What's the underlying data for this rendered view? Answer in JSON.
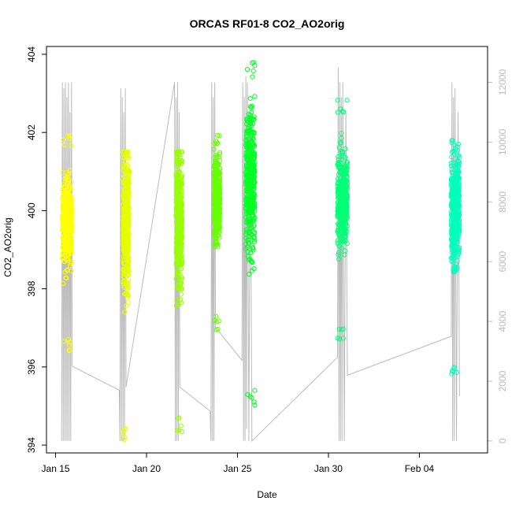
{
  "chart_data": {
    "type": "scatter",
    "title": "ORCAS RF01-8 CO2_AO2orig",
    "xlabel": "Date",
    "ylabel": "CO2_AO2orig",
    "x_axis": {
      "type": "date",
      "range": [
        "2016-01-14T12:00",
        "2016-02-07T18:00"
      ],
      "ticks": [
        {
          "value": "2016-01-15",
          "label": "Jan 15"
        },
        {
          "value": "2016-01-20",
          "label": "Jan 20"
        },
        {
          "value": "2016-01-25",
          "label": "Jan 25"
        },
        {
          "value": "2016-01-30",
          "label": "Jan 30"
        },
        {
          "value": "2016-02-04",
          "label": "Feb 04"
        }
      ]
    },
    "y_axis": {
      "range": [
        393.8,
        404.2
      ],
      "ticks": [
        394,
        396,
        398,
        400,
        402,
        404
      ]
    },
    "y2_axis": {
      "range": [
        -400,
        13200
      ],
      "ticks": [
        0,
        2000,
        4000,
        6000,
        8000,
        10000,
        12000
      ],
      "color": "#bbbbbb"
    },
    "colors": {
      "altitude_line": "#bbbbbb",
      "axis": "#000000",
      "right_axis": "#bbbbbb"
    },
    "series": [
      {
        "start": "2016-01-15T09:00",
        "end": "2016-01-15T22:00",
        "co2_min": 396.3,
        "co2_max": 402.0,
        "co2_center": 399.7,
        "color": "#ffff00"
      },
      {
        "start": "2016-01-18T17:00",
        "end": "2016-01-19T01:00",
        "co2_min": 394.1,
        "co2_max": 401.5,
        "co2_center": 399.6,
        "color": "#e6ff00"
      },
      {
        "start": "2016-01-21T15:00",
        "end": "2016-01-21T23:00",
        "co2_min": 394.3,
        "co2_max": 401.5,
        "co2_center": 399.8,
        "color": "#99ff00"
      },
      {
        "start": "2016-01-23T17:00",
        "end": "2016-01-24T01:00",
        "co2_min": 396.9,
        "co2_max": 402.1,
        "co2_center": 400.3,
        "color": "#66ff00"
      },
      {
        "start": "2016-01-25T11:00",
        "end": "2016-01-25T23:00",
        "co2_min": 395.0,
        "co2_max": 403.8,
        "co2_center": 400.8,
        "color": "#00ff22"
      },
      {
        "start": "2016-01-30T12:00",
        "end": "2016-01-31T01:00",
        "co2_min": 396.6,
        "co2_max": 402.9,
        "co2_center": 400.3,
        "color": "#00ff77"
      },
      {
        "start": "2016-02-05T18:00",
        "end": "2016-02-06T05:00",
        "co2_min": 395.7,
        "co2_max": 401.8,
        "co2_center": 400.0,
        "color": "#00ffbb"
      }
    ],
    "altitude_path": [
      [
        "2016-01-15T08:00",
        0
      ],
      [
        "2016-01-15T09:00",
        12000
      ],
      [
        "2016-01-15T10:00",
        0
      ],
      [
        "2016-01-15T11:00",
        11800
      ],
      [
        "2016-01-15T12:00",
        0
      ],
      [
        "2016-01-15T13:00",
        12000
      ],
      [
        "2016-01-15T14:00",
        0
      ],
      [
        "2016-01-15T15:00",
        11500
      ],
      [
        "2016-01-15T16:00",
        0
      ],
      [
        "2016-01-15T17:00",
        12000
      ],
      [
        "2016-01-15T18:00",
        0
      ],
      [
        "2016-01-15T19:00",
        11000
      ],
      [
        "2016-01-15T20:00",
        0
      ],
      [
        "2016-01-15T21:00",
        12000
      ],
      [
        "2016-01-15T22:00",
        2500
      ],
      [
        "2016-01-18T12:00",
        1700
      ],
      [
        "2016-01-18T13:00",
        0
      ],
      [
        "2016-01-18T14:00",
        11800
      ],
      [
        "2016-01-18T15:00",
        0
      ],
      [
        "2016-01-18T16:00",
        11500
      ],
      [
        "2016-01-18T17:00",
        0
      ],
      [
        "2016-01-18T18:00",
        11000
      ],
      [
        "2016-01-18T19:00",
        0
      ],
      [
        "2016-01-18T20:00",
        11800
      ],
      [
        "2016-01-18T21:00",
        1800
      ],
      [
        "2016-01-21T13:00",
        12000
      ],
      [
        "2016-01-21T14:00",
        0
      ],
      [
        "2016-01-21T15:00",
        11500
      ],
      [
        "2016-01-21T16:00",
        0
      ],
      [
        "2016-01-21T17:00",
        12000
      ],
      [
        "2016-01-21T18:00",
        0
      ],
      [
        "2016-01-21T19:00",
        11000
      ],
      [
        "2016-01-21T20:00",
        1800
      ],
      [
        "2016-01-23T12:00",
        1000
      ],
      [
        "2016-01-23T13:00",
        0
      ],
      [
        "2016-01-23T14:00",
        12000
      ],
      [
        "2016-01-23T15:00",
        0
      ],
      [
        "2016-01-23T16:00",
        11500
      ],
      [
        "2016-01-23T17:00",
        0
      ],
      [
        "2016-01-23T18:00",
        12000
      ],
      [
        "2016-01-23T19:00",
        3800
      ],
      [
        "2016-01-25T06:00",
        2700
      ],
      [
        "2016-01-25T07:00",
        12000
      ],
      [
        "2016-01-25T08:00",
        0
      ],
      [
        "2016-01-25T09:00",
        11500
      ],
      [
        "2016-01-25T10:00",
        0
      ],
      [
        "2016-01-25T11:00",
        12200
      ],
      [
        "2016-01-25T12:00",
        400
      ],
      [
        "2016-01-25T13:00",
        12000
      ],
      [
        "2016-01-25T15:00",
        0
      ],
      [
        "2016-01-25T17:00",
        11000
      ],
      [
        "2016-01-25T19:00",
        0
      ],
      [
        "2016-01-30T12:00",
        2800
      ],
      [
        "2016-01-30T13:00",
        12500
      ],
      [
        "2016-01-30T14:00",
        0
      ],
      [
        "2016-01-30T15:00",
        12000
      ],
      [
        "2016-01-30T16:00",
        0
      ],
      [
        "2016-01-30T17:00",
        11500
      ],
      [
        "2016-01-30T18:00",
        0
      ],
      [
        "2016-01-30T19:00",
        12000
      ],
      [
        "2016-01-30T21:00",
        0
      ],
      [
        "2016-01-30T23:00",
        11000
      ],
      [
        "2016-01-31T01:00",
        2200
      ],
      [
        "2016-02-05T18:00",
        3500
      ],
      [
        "2016-02-05T19:00",
        12000
      ],
      [
        "2016-02-05T20:00",
        0
      ],
      [
        "2016-02-05T21:00",
        11500
      ],
      [
        "2016-02-05T22:00",
        0
      ],
      [
        "2016-02-05T23:00",
        11800
      ],
      [
        "2016-02-06T01:00",
        0
      ],
      [
        "2016-02-06T03:00",
        11000
      ],
      [
        "2016-02-06T05:00",
        1500
      ]
    ]
  }
}
